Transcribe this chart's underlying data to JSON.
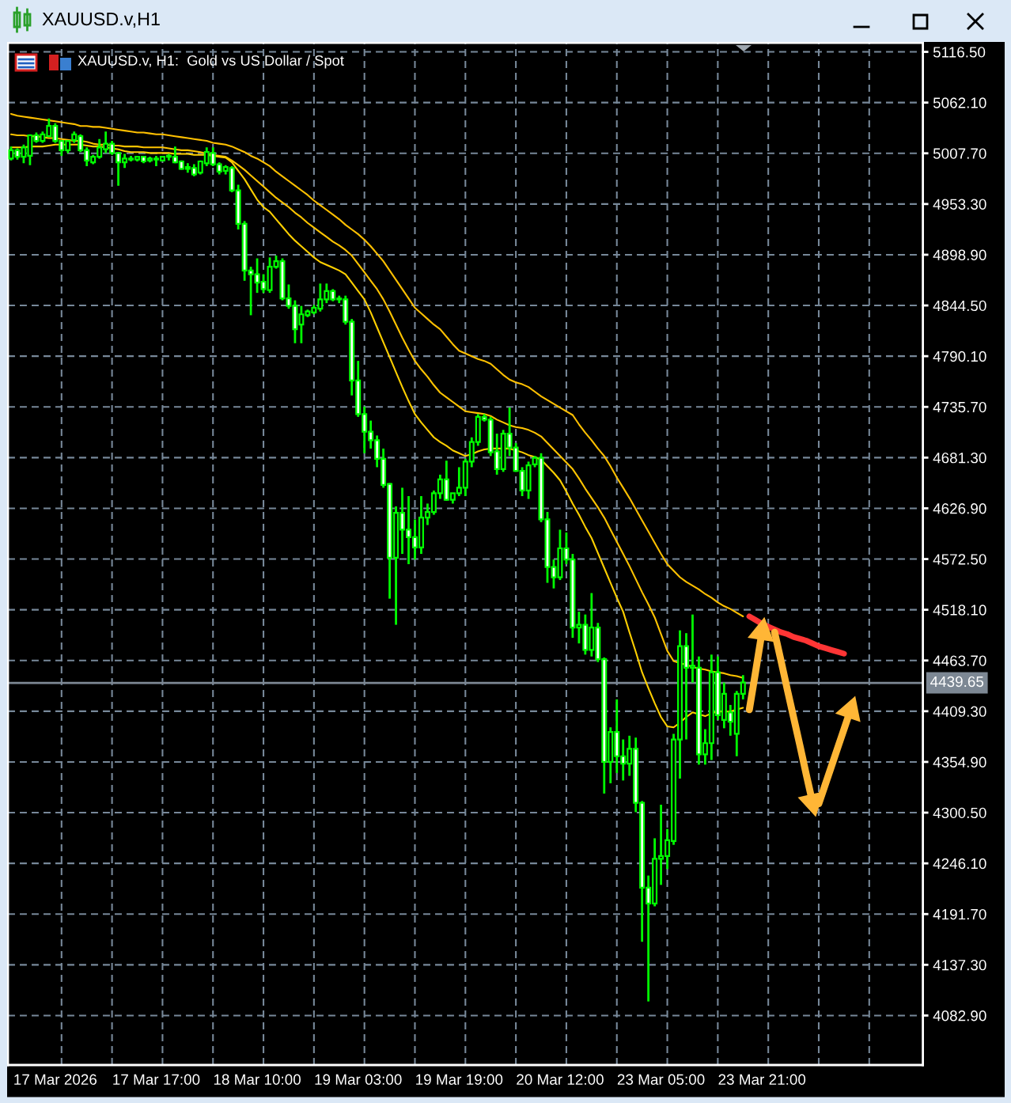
{
  "chart_data": {
    "type": "candlestick",
    "title": "XAUUSD.v,H1",
    "subtitle": "XAUUSD.v, H1:  Gold vs US Dollar / Spot",
    "categories": [
      null,
      null,
      null,
      null,
      null,
      null,
      null,
      "17 Mar 2026",
      null,
      null,
      null,
      null,
      null,
      null,
      null,
      null,
      null,
      null,
      null,
      null,
      null,
      null,
      null,
      "17 Mar 17:00",
      null,
      null,
      null,
      null,
      null,
      null,
      null,
      null,
      null,
      null,
      null,
      null,
      null,
      null,
      null,
      "18 Mar 10:00",
      null,
      null,
      null,
      null,
      null,
      null,
      null,
      null,
      null,
      null,
      null,
      null,
      null,
      null,
      null,
      "19 Mar 03:00",
      null,
      null,
      null,
      null,
      null,
      null,
      null,
      null,
      null,
      null,
      null,
      null,
      null,
      null,
      null,
      "19 Mar 19:00",
      null,
      null,
      null,
      null,
      null,
      null,
      null,
      null,
      null,
      null,
      null,
      null,
      null,
      null,
      null,
      "20 Mar 12:00",
      null,
      null,
      null,
      null,
      null,
      null,
      null,
      null,
      null,
      null,
      null,
      null,
      null,
      null,
      null,
      "23 Mar 05:00",
      null,
      null,
      null,
      null,
      null,
      null,
      null,
      null,
      null,
      null,
      null,
      null,
      null,
      null,
      null,
      "23 Mar 21:00",
      null,
      null,
      null,
      null,
      null,
      null,
      null,
      null,
      null,
      null,
      null,
      null,
      null,
      null,
      null,
      null,
      null,
      null,
      null,
      null,
      null,
      null,
      null,
      null,
      null
    ],
    "color": "#00ff00",
    "ohlc": [
      [
        5002,
        5015,
        5000,
        5011
      ],
      [
        5011,
        5013,
        5001,
        5004
      ],
      [
        5004,
        5017,
        4997,
        5014
      ],
      [
        5005,
        5028,
        4995,
        5027
      ],
      [
        5027,
        5030,
        5019,
        5021
      ],
      [
        5021,
        5031,
        5019,
        5028
      ],
      [
        5026,
        5045,
        5025,
        5037
      ],
      [
        5037,
        5040,
        5019,
        5021
      ],
      [
        5021,
        5022,
        5005,
        5011
      ],
      [
        5011,
        5022,
        5008,
        5021
      ],
      [
        5022,
        5031,
        5019,
        5028
      ],
      [
        5026,
        5028,
        5009,
        5011
      ],
      [
        5011,
        5014,
        4994,
        5000
      ],
      [
        4998,
        5006,
        4996,
        5004
      ],
      [
        5004,
        5023,
        5002,
        5014
      ],
      [
        5012,
        5031,
        5008,
        5018
      ],
      [
        5018,
        5021,
        5006,
        5008
      ],
      [
        5008,
        5009,
        4973,
        4998
      ],
      [
        4998,
        5007,
        4992,
        5002
      ],
      [
        5002,
        5005,
        4999,
        5001
      ],
      [
        5001,
        5005,
        4999,
        5004
      ],
      [
        5004,
        5005,
        4997,
        4999
      ],
      [
        5000,
        5004,
        4998,
        5002
      ],
      [
        5002,
        5005,
        4994,
        5001
      ],
      [
        5000,
        5005,
        4999,
        5004
      ],
      [
        5004,
        5007,
        5000,
        5005
      ],
      [
        5004,
        5015,
        4997,
        4998
      ],
      [
        4999,
        5000,
        4990,
        4991
      ],
      [
        4991,
        4997,
        4987,
        4993
      ],
      [
        4992,
        4996,
        4983,
        4985
      ],
      [
        4987,
        5000,
        4985,
        4999
      ],
      [
        4997,
        5014,
        4994,
        5009
      ],
      [
        5008,
        5014,
        4994,
        4996
      ],
      [
        4996,
        4998,
        4985,
        4988
      ],
      [
        4989,
        4995,
        4985,
        4993
      ],
      [
        4992,
        4994,
        4966,
        4968
      ],
      [
        4968,
        4974,
        4926,
        4932
      ],
      [
        4932,
        4935,
        4871,
        4882
      ],
      [
        4882,
        4886,
        4834,
        4878
      ],
      [
        4878,
        4895,
        4858,
        4869
      ],
      [
        4870,
        4878,
        4858,
        4862
      ],
      [
        4861,
        4896,
        4858,
        4886
      ],
      [
        4886,
        4898,
        4884,
        4892
      ],
      [
        4892,
        4895,
        4850,
        4852
      ],
      [
        4852,
        4867,
        4841,
        4844
      ],
      [
        4844,
        4850,
        4804,
        4819
      ],
      [
        4824,
        4844,
        4804,
        4835
      ],
      [
        4834,
        4840,
        4832,
        4838
      ],
      [
        4837,
        4845,
        4835,
        4842
      ],
      [
        4841,
        4868,
        4838,
        4851
      ],
      [
        4851,
        4868,
        4847,
        4860
      ],
      [
        4860,
        4862,
        4849,
        4851
      ],
      [
        4851,
        4855,
        4847,
        4852
      ],
      [
        4851,
        4855,
        4824,
        4827
      ],
      [
        4827,
        4830,
        4748,
        4764
      ],
      [
        4764,
        4785,
        4725,
        4728
      ],
      [
        4728,
        4736,
        4686,
        4709
      ],
      [
        4709,
        4721,
        4691,
        4700
      ],
      [
        4700,
        4705,
        4671,
        4680
      ],
      [
        4680,
        4691,
        4649,
        4652
      ],
      [
        4653,
        4654,
        4530,
        4574
      ],
      [
        4574,
        4629,
        4502,
        4622
      ],
      [
        4622,
        4649,
        4578,
        4604
      ],
      [
        4604,
        4640,
        4567,
        4596
      ],
      [
        4596,
        4615,
        4572,
        4585
      ],
      [
        4585,
        4640,
        4578,
        4617
      ],
      [
        4617,
        4632,
        4609,
        4623
      ],
      [
        4623,
        4646,
        4620,
        4643
      ],
      [
        4643,
        4663,
        4637,
        4658
      ],
      [
        4658,
        4678,
        4635,
        4636
      ],
      [
        4636,
        4643,
        4632,
        4643
      ],
      [
        4643,
        4671,
        4640,
        4649
      ],
      [
        4649,
        4680,
        4640,
        4677
      ],
      [
        4677,
        4703,
        4671,
        4698
      ],
      [
        4698,
        4728,
        4694,
        4725
      ],
      [
        4725,
        4728,
        4720,
        4722
      ],
      [
        4722,
        4725,
        4683,
        4687
      ],
      [
        4688,
        4707,
        4663,
        4669
      ],
      [
        4669,
        4711,
        4666,
        4707
      ],
      [
        4707,
        4735,
        4683,
        4692
      ],
      [
        4692,
        4697,
        4666,
        4667
      ],
      [
        4667,
        4671,
        4640,
        4646
      ],
      [
        4646,
        4677,
        4637,
        4673
      ],
      [
        4674,
        4683,
        4671,
        4681
      ],
      [
        4681,
        4686,
        4612,
        4615
      ],
      [
        4615,
        4623,
        4547,
        4564
      ],
      [
        4564,
        4572,
        4541,
        4553
      ],
      [
        4553,
        4604,
        4550,
        4584
      ],
      [
        4584,
        4601,
        4567,
        4572
      ],
      [
        4572,
        4578,
        4488,
        4499
      ],
      [
        4499,
        4516,
        4482,
        4502
      ],
      [
        4502,
        4513,
        4470,
        4475
      ],
      [
        4475,
        4536,
        4468,
        4499
      ],
      [
        4499,
        4504,
        4462,
        4465
      ],
      [
        4465,
        4467,
        4321,
        4355
      ],
      [
        4355,
        4392,
        4332,
        4387
      ],
      [
        4387,
        4422,
        4343,
        4361
      ],
      [
        4361,
        4379,
        4335,
        4353
      ],
      [
        4353,
        4383,
        4340,
        4369
      ],
      [
        4369,
        4381,
        4301,
        4311
      ],
      [
        4311,
        4313,
        4162,
        4220
      ],
      [
        4220,
        4233,
        4098,
        4203
      ],
      [
        4203,
        4273,
        4200,
        4251
      ],
      [
        4251,
        4309,
        4223,
        4254
      ],
      [
        4254,
        4283,
        4240,
        4271
      ],
      [
        4270,
        4385,
        4266,
        4379
      ],
      [
        4379,
        4496,
        4337,
        4479
      ],
      [
        4479,
        4493,
        4379,
        4456
      ],
      [
        4456,
        4513,
        4440,
        4458
      ],
      [
        4456,
        4468,
        4352,
        4363
      ],
      [
        4363,
        4390,
        4352,
        4375
      ],
      [
        4375,
        4470,
        4357,
        4451
      ],
      [
        4451,
        4468,
        4400,
        4405
      ],
      [
        4400,
        4440,
        4391,
        4428
      ],
      [
        4408,
        4416,
        4383,
        4398
      ],
      [
        4385,
        4431,
        4361,
        4428
      ],
      [
        4428,
        4448,
        4422,
        4440
      ],
      null,
      null,
      null,
      null,
      null,
      null,
      null,
      null,
      null,
      null,
      null,
      null,
      null,
      null,
      null,
      null,
      null,
      null,
      null,
      null,
      null,
      null,
      null,
      null,
      null,
      null,
      null,
      null
    ],
    "series": [
      {
        "type": "line",
        "color": "#ffc000",
        "values": [
          5050,
          5048,
          5047,
          5046,
          5045,
          5044,
          5043,
          5042,
          5041,
          5040,
          5039,
          5037,
          5037,
          5036,
          5036,
          5035,
          5034,
          5033,
          5032,
          5031,
          5030,
          5030,
          5029,
          5028,
          5028,
          5027,
          5026,
          5025,
          5024,
          5023,
          5022,
          5021,
          5019,
          5018,
          5017,
          5015,
          5012,
          5009,
          5005,
          5002,
          4998,
          4994,
          4988,
          4983,
          4978,
          4973,
          4968,
          4963,
          4957,
          4952,
          4947,
          4942,
          4937,
          4931,
          4926,
          4921,
          4915,
          4908,
          4900,
          4892,
          4882,
          4872,
          4862,
          4852,
          4842,
          4836,
          4830,
          4824,
          4819,
          4811,
          4803,
          4796,
          4793,
          4790,
          4787,
          4785,
          4782,
          4776,
          4770,
          4765,
          4762,
          4760,
          4757,
          4752,
          4747,
          4743,
          4739,
          4735,
          4731,
          4727,
          4717,
          4708,
          4700,
          4691,
          4683,
          4672,
          4660,
          4649,
          4638,
          4626,
          4614,
          4602,
          4590,
          4578,
          4567,
          4560,
          4553,
          4548,
          4544,
          4540,
          4535,
          4531,
          4526,
          4522,
          4519,
          4515,
          4511,
          null,
          null,
          null,
          null,
          null,
          null,
          null,
          null,
          null,
          null,
          null,
          null,
          null,
          null,
          null,
          null,
          null,
          null,
          null,
          null,
          null,
          null,
          null,
          null,
          null,
          null,
          null,
          null
        ]
      },
      {
        "type": "line",
        "color": "#ffc400",
        "values": [
          5028,
          5027,
          5027,
          5026,
          5026,
          5025,
          5024,
          5024,
          5023,
          5022,
          5021,
          5021,
          5020,
          5018,
          5017,
          5017,
          5016,
          5016,
          5015,
          5015,
          5015,
          5014,
          5014,
          5014,
          5014,
          5013,
          5012,
          5011,
          5011,
          5010,
          5009,
          5007,
          5006,
          5005,
          5004,
          5000,
          4995,
          4990,
          4984,
          4978,
          4972,
          4966,
          4960,
          4955,
          4950,
          4944,
          4939,
          4933,
          4928,
          4923,
          4918,
          4913,
          4909,
          4904,
          4898,
          4889,
          4880,
          4871,
          4862,
          4851,
          4838,
          4824,
          4810,
          4797,
          4785,
          4776,
          4768,
          4759,
          4751,
          4746,
          4741,
          4736,
          4731,
          4730,
          4729,
          4728,
          4726,
          4722,
          4719,
          4716,
          4714,
          4713,
          4711,
          4708,
          4704,
          4697,
          4690,
          4683,
          4676,
          4669,
          4659,
          4648,
          4638,
          4628,
          4617,
          4604,
          4591,
          4578,
          4565,
          4551,
          4537,
          4524,
          4510,
          4492,
          4474,
          4463,
          4461,
          4459,
          4457,
          4455,
          4454,
          4452,
          4451,
          4450,
          4448,
          4447,
          4445,
          null,
          null,
          null,
          null,
          null,
          null,
          null,
          null,
          null,
          null,
          null,
          null,
          null,
          null,
          null,
          null,
          null,
          null,
          null,
          null,
          null,
          null,
          null,
          null,
          null,
          null,
          null,
          null
        ]
      },
      {
        "type": "line",
        "color": "#ffd000",
        "values": [
          5014,
          5014,
          5014,
          5015,
          5015,
          5015,
          5016,
          5017,
          5017,
          5017,
          5017,
          5017,
          5016,
          5015,
          5015,
          5014,
          5013,
          5012,
          5010,
          5009,
          5009,
          5009,
          5008,
          5008,
          5008,
          5008,
          5007,
          5007,
          5007,
          5006,
          5006,
          5006,
          5005,
          5004,
          5003,
          4998,
          4989,
          4980,
          4969,
          4958,
          4950,
          4945,
          4937,
          4929,
          4921,
          4914,
          4908,
          4902,
          4896,
          4891,
          4888,
          4885,
          4882,
          4878,
          4869,
          4860,
          4851,
          4837,
          4821,
          4805,
          4789,
          4773,
          4757,
          4742,
          4728,
          4719,
          4711,
          4703,
          4698,
          4694,
          4689,
          4686,
          4683,
          4685,
          4688,
          4690,
          4691,
          4691,
          4691,
          4691,
          4689,
          4687,
          4684,
          4682,
          4679,
          4672,
          4665,
          4657,
          4645,
          4632,
          4620,
          4607,
          4595,
          4579,
          4563,
          4547,
          4531,
          4516,
          4494,
          4473,
          4451,
          4434,
          4418,
          4403,
          4393,
          4392,
          4397,
          4403,
          4408,
          4406,
          4404,
          4407,
          4409,
          4409,
          4409,
          4411,
          4413,
          null,
          null,
          null,
          null,
          null,
          null,
          null,
          null,
          null,
          null,
          null,
          null,
          null,
          null,
          null,
          null,
          null,
          null,
          null,
          null,
          null,
          null,
          null,
          null,
          null,
          null,
          null,
          null
        ]
      },
      {
        "type": "line",
        "color": "#ff3535",
        "values": [
          null,
          null,
          null,
          null,
          null,
          null,
          null,
          null,
          null,
          null,
          null,
          null,
          null,
          null,
          null,
          null,
          null,
          null,
          null,
          null,
          null,
          null,
          null,
          null,
          null,
          null,
          null,
          null,
          null,
          null,
          null,
          null,
          null,
          null,
          null,
          null,
          null,
          null,
          null,
          null,
          null,
          null,
          null,
          null,
          null,
          null,
          null,
          null,
          null,
          null,
          null,
          null,
          null,
          null,
          null,
          null,
          null,
          null,
          null,
          null,
          null,
          null,
          null,
          null,
          null,
          null,
          null,
          null,
          null,
          null,
          null,
          null,
          null,
          null,
          null,
          null,
          null,
          null,
          null,
          null,
          null,
          null,
          null,
          null,
          null,
          null,
          null,
          null,
          null,
          null,
          null,
          null,
          null,
          null,
          null,
          null,
          null,
          null,
          null,
          null,
          null,
          null,
          null,
          null,
          null,
          null,
          null,
          null,
          null,
          null,
          null,
          null,
          null,
          null,
          null,
          null,
          null,
          4511,
          4507,
          4503,
          4500,
          4497,
          4494,
          4492,
          4489,
          4487,
          4485,
          4482,
          4479,
          4477,
          4475,
          4473,
          4471,
          null,
          null,
          null,
          null,
          null,
          null,
          null,
          null,
          null,
          null,
          null,
          null
        ]
      },
      {
        "type": "line",
        "color": "#ffb636",
        "values": [
          null,
          null,
          null,
          null,
          null,
          null,
          null,
          null,
          null,
          null,
          null,
          null,
          null,
          null,
          null,
          null,
          null,
          null,
          null,
          null,
          null,
          null,
          null,
          null,
          null,
          null,
          null,
          null,
          null,
          null,
          null,
          null,
          null,
          null,
          null,
          null,
          null,
          null,
          null,
          null,
          null,
          null,
          null,
          null,
          null,
          null,
          null,
          null,
          null,
          null,
          null,
          null,
          null,
          null,
          null,
          null,
          null,
          null,
          null,
          null,
          null,
          null,
          null,
          null,
          null,
          null,
          null,
          null,
          null,
          null,
          null,
          null,
          null,
          null,
          null,
          null,
          null,
          null,
          null,
          null,
          null,
          null,
          null,
          null,
          null,
          null,
          null,
          null,
          null,
          null,
          null,
          null,
          null,
          null,
          null,
          null,
          null,
          null,
          null,
          null,
          null,
          null,
          null,
          null,
          null,
          null,
          null,
          null,
          null,
          null,
          null,
          null,
          null,
          null,
          null,
          null,
          null,
          4411,
          4452,
          4494,
          null,
          null,
          null,
          null,
          null,
          null,
          null,
          null,
          null,
          null,
          null,
          null,
          null,
          null,
          null,
          null,
          null,
          null,
          null,
          null,
          null,
          null,
          null,
          null,
          null
        ]
      },
      {
        "type": "line",
        "color": "#ffb636",
        "values": [
          null,
          null,
          null,
          null,
          null,
          null,
          null,
          null,
          null,
          null,
          null,
          null,
          null,
          null,
          null,
          null,
          null,
          null,
          null,
          null,
          null,
          null,
          null,
          null,
          null,
          null,
          null,
          null,
          null,
          null,
          null,
          null,
          null,
          null,
          null,
          null,
          null,
          null,
          null,
          null,
          null,
          null,
          null,
          null,
          null,
          null,
          null,
          null,
          null,
          null,
          null,
          null,
          null,
          null,
          null,
          null,
          null,
          null,
          null,
          null,
          null,
          null,
          null,
          null,
          null,
          null,
          null,
          null,
          null,
          null,
          null,
          null,
          null,
          null,
          null,
          null,
          null,
          null,
          null,
          null,
          null,
          null,
          null,
          null,
          null,
          null,
          null,
          null,
          null,
          null,
          null,
          null,
          null,
          null,
          null,
          null,
          null,
          null,
          null,
          null,
          null,
          null,
          null,
          null,
          null,
          null,
          null,
          null,
          null,
          null,
          null,
          null,
          null,
          null,
          null,
          null,
          null,
          null,
          null,
          null,
          null,
          4494,
          4464,
          4433,
          4403,
          4373,
          4342,
          4312,
          null,
          null,
          null,
          null,
          null,
          null,
          null,
          null,
          null,
          null,
          null,
          null,
          null,
          null,
          null,
          null,
          null
        ]
      },
      {
        "type": "line",
        "color": "#ffb636",
        "values": [
          null,
          null,
          null,
          null,
          null,
          null,
          null,
          null,
          null,
          null,
          null,
          null,
          null,
          null,
          null,
          null,
          null,
          null,
          null,
          null,
          null,
          null,
          null,
          null,
          null,
          null,
          null,
          null,
          null,
          null,
          null,
          null,
          null,
          null,
          null,
          null,
          null,
          null,
          null,
          null,
          null,
          null,
          null,
          null,
          null,
          null,
          null,
          null,
          null,
          null,
          null,
          null,
          null,
          null,
          null,
          null,
          null,
          null,
          null,
          null,
          null,
          null,
          null,
          null,
          null,
          null,
          null,
          null,
          null,
          null,
          null,
          null,
          null,
          null,
          null,
          null,
          null,
          null,
          null,
          null,
          null,
          null,
          null,
          null,
          null,
          null,
          null,
          null,
          null,
          null,
          null,
          null,
          null,
          null,
          null,
          null,
          null,
          null,
          null,
          null,
          null,
          null,
          null,
          null,
          null,
          null,
          null,
          null,
          null,
          null,
          null,
          null,
          null,
          null,
          null,
          null,
          null,
          null,
          null,
          null,
          null,
          null,
          null,
          null,
          null,
          null,
          null,
          null,
          4310,
          4330,
          4350,
          4370,
          4390,
          4410,
          null,
          null,
          null,
          null,
          null,
          null,
          null,
          null,
          null,
          null,
          null
        ]
      }
    ],
    "ylim": [
      4029.8,
      5126.3
    ],
    "yticks": [
      {
        "value": 5116.5,
        "label": "5116.50"
      },
      {
        "value": 5062.1,
        "label": "5062.10"
      },
      {
        "value": 5007.7,
        "label": "5007.70"
      },
      {
        "value": 4953.3,
        "label": "4953.30"
      },
      {
        "value": 4898.9,
        "label": "4898.90"
      },
      {
        "value": 4844.5,
        "label": "4844.50"
      },
      {
        "value": 4790.1,
        "label": "4790.10"
      },
      {
        "value": 4735.7,
        "label": "4735.70"
      },
      {
        "value": 4681.3,
        "label": "4681.30"
      },
      {
        "value": 4626.9,
        "label": "4626.90"
      },
      {
        "value": 4572.5,
        "label": "4572.50"
      },
      {
        "value": 4518.1,
        "label": "4518.10"
      },
      {
        "value": 4463.7,
        "label": "4463.70"
      },
      {
        "value": 4409.3,
        "label": "4409.30"
      },
      {
        "value": 4354.9,
        "label": "4354.90"
      },
      {
        "value": 4300.5,
        "label": "4300.50"
      },
      {
        "value": 4246.1,
        "label": "4246.10"
      },
      {
        "value": 4191.7,
        "label": "4191.70"
      },
      {
        "value": 4137.3,
        "label": "4137.30"
      },
      {
        "value": 4082.9,
        "label": "4082.90"
      }
    ],
    "grid": true,
    "ref_lines": [
      {
        "axis": "y",
        "value": 4439.65,
        "label": "4439.65",
        "color": "#7d8894"
      }
    ]
  }
}
